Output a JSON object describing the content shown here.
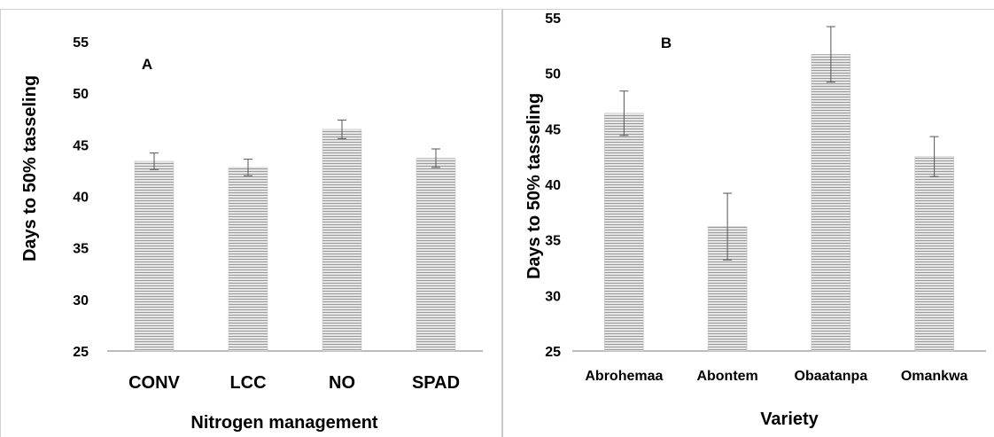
{
  "chart_data": [
    {
      "type": "bar",
      "panel_label": "A",
      "categories": [
        "CONV",
        "LCC",
        "NO",
        "SPAD"
      ],
      "values": [
        43.4,
        42.8,
        46.5,
        43.7
      ],
      "errors": [
        0.8,
        0.8,
        0.9,
        0.9
      ],
      "xlabel": "Nitrogen management",
      "ylabel": "Days to 50% tasseling",
      "ylim": [
        25,
        55
      ],
      "yticks": [
        25,
        30,
        35,
        40,
        45,
        50,
        55
      ],
      "bar_color": "#bdbdbd",
      "grid": false,
      "legend": "none"
    },
    {
      "type": "bar",
      "panel_label": "B",
      "categories": [
        "Abrohemaa",
        "Abontem",
        "Obaatanpa",
        "Omankwa"
      ],
      "values": [
        46.4,
        36.2,
        51.7,
        42.5
      ],
      "errors": [
        2.0,
        3.0,
        2.5,
        1.8
      ],
      "xlabel": "Variety",
      "ylabel": "Days to 50% tasseling",
      "ylim": [
        25,
        55
      ],
      "yticks": [
        25,
        30,
        35,
        40,
        45,
        50,
        55
      ],
      "bar_color": "#bdbdbd",
      "grid": false,
      "legend": "none"
    }
  ]
}
